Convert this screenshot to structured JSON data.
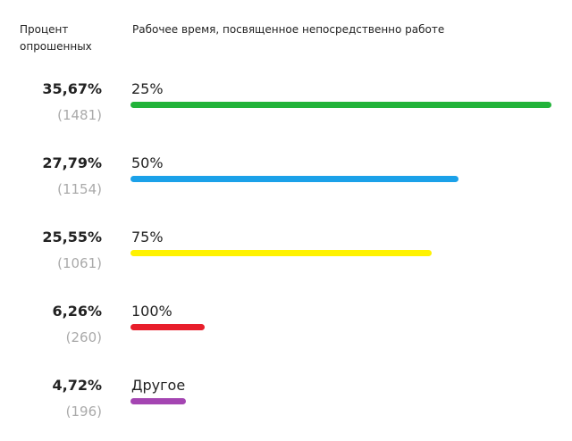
{
  "chart_data": {
    "type": "bar",
    "orientation": "horizontal",
    "value_header": "Процент опрошенных",
    "category_header": "Рабочее время, посвященное непосредственно работе",
    "categories": [
      "25%",
      "50%",
      "75%",
      "100%",
      "Другое"
    ],
    "values": [
      35.67,
      27.79,
      25.55,
      6.26,
      4.72
    ],
    "value_labels": [
      "35,67%",
      "27,79%",
      "25,55%",
      "6,26%",
      "4,72%"
    ],
    "count_labels": [
      "(1481)",
      "(1154)",
      "(1061)",
      "(260)",
      "(196)"
    ],
    "colors": [
      "#22b33a",
      "#1ba1e9",
      "#fff200",
      "#e81e2b",
      "#a445b2"
    ]
  }
}
